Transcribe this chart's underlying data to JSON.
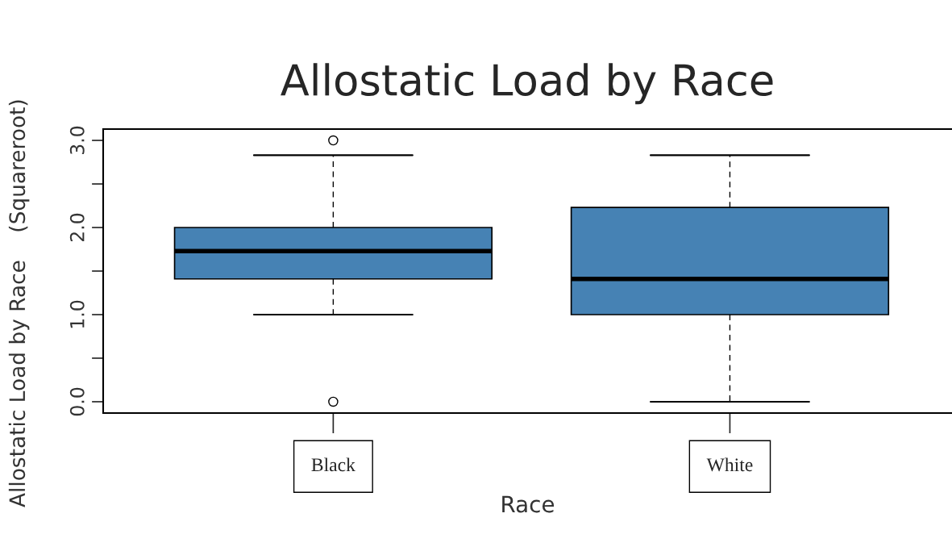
{
  "chart_data": {
    "type": "box",
    "title": "Allostatic Load by Race",
    "xlabel": "Race",
    "ylabel": "Allostatic Load by Race    (Squareroot)",
    "categories": [
      "Black",
      "White"
    ],
    "boxes": [
      {
        "low": 1.0,
        "q1": 1.41,
        "median": 1.73,
        "q3": 2.0,
        "high": 2.83,
        "outliers": [
          3.0,
          0.0
        ]
      },
      {
        "low": 0.0,
        "q1": 1.0,
        "median": 1.41,
        "q3": 2.23,
        "high": 2.83
      }
    ],
    "color": "#4682b4",
    "ylim": [
      -0.13,
      3.13
    ],
    "yticks": [
      {
        "value": 0.0,
        "label": "0.0"
      },
      {
        "value": 0.5,
        "label": null
      },
      {
        "value": 1.0,
        "label": "1.0"
      },
      {
        "value": 1.5,
        "label": null
      },
      {
        "value": 2.0,
        "label": "2.0"
      },
      {
        "value": 2.5,
        "label": null
      },
      {
        "value": 3.0,
        "label": "3.0"
      }
    ],
    "grid": false,
    "legend": false
  }
}
